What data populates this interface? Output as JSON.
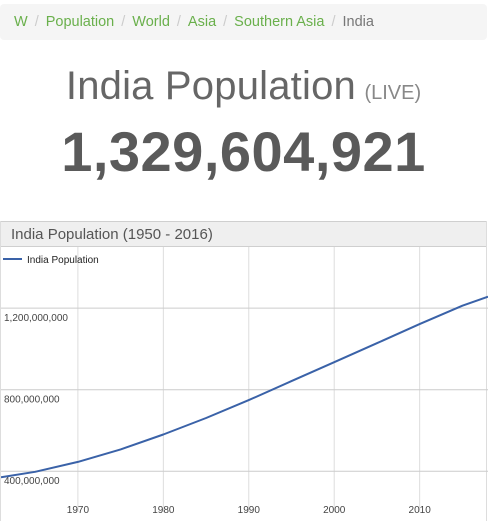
{
  "breadcrumb": {
    "items": [
      {
        "label": "W",
        "link": true
      },
      {
        "label": "Population",
        "link": true
      },
      {
        "label": "World",
        "link": true
      },
      {
        "label": "Asia",
        "link": true
      },
      {
        "label": "Southern Asia",
        "link": true
      },
      {
        "label": "India",
        "link": false
      }
    ],
    "separator": "/"
  },
  "header": {
    "title": "India Population",
    "live_tag": "(LIVE)",
    "counter": "1,329,604,921"
  },
  "chart": {
    "panel_title": "India Population (1950 - 2016)"
  },
  "colors": {
    "link": "#6ab04c",
    "line": "#3a62a8",
    "grid": "#dddddd"
  },
  "chart_data": {
    "type": "line",
    "title": "India Population (1950 - 2016)",
    "legend_position": "top-left",
    "grid": true,
    "xlim": [
      1961,
      2018
    ],
    "ylim": [
      200000000,
      1500000000
    ],
    "x_ticks": [
      1970,
      1980,
      1990,
      2000,
      2010
    ],
    "x_tick_labels": [
      "1970",
      "1980",
      "1990",
      "2000",
      "2010"
    ],
    "y_ticks": [
      400000000,
      800000000,
      1200000000
    ],
    "y_tick_labels": [
      "400,000,000",
      "800,000,000",
      "1,200,000,000"
    ],
    "series": [
      {
        "name": "India Population",
        "color": "#3a62a8",
        "x": [
          1961,
          1965,
          1970,
          1975,
          1980,
          1985,
          1990,
          1995,
          2000,
          2005,
          2010,
          2015,
          2018
        ],
        "y": [
          370000000,
          397000000,
          446000000,
          507000000,
          580000000,
          661000000,
          749000000,
          842000000,
          935000000,
          1028000000,
          1122000000,
          1212000000,
          1256000000
        ]
      }
    ]
  }
}
